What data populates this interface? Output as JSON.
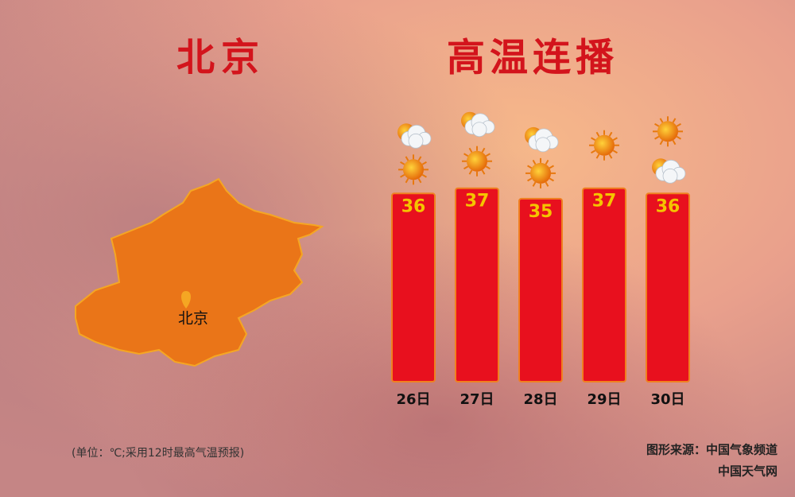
{
  "chart_data": {
    "type": "bar",
    "title": "北京",
    "subtitle": "高温连播",
    "categories": [
      "26日",
      "27日",
      "28日",
      "29日",
      "30日"
    ],
    "values": [
      36,
      37,
      35,
      37,
      36
    ],
    "color": "#e8101e",
    "ylim": [
      0,
      40
    ],
    "map_label": "北京",
    "note": "(单位：℃;采用12时最高气温预报)",
    "source": "图形来源：中国气象频道",
    "source_site": "中国天气网"
  }
}
